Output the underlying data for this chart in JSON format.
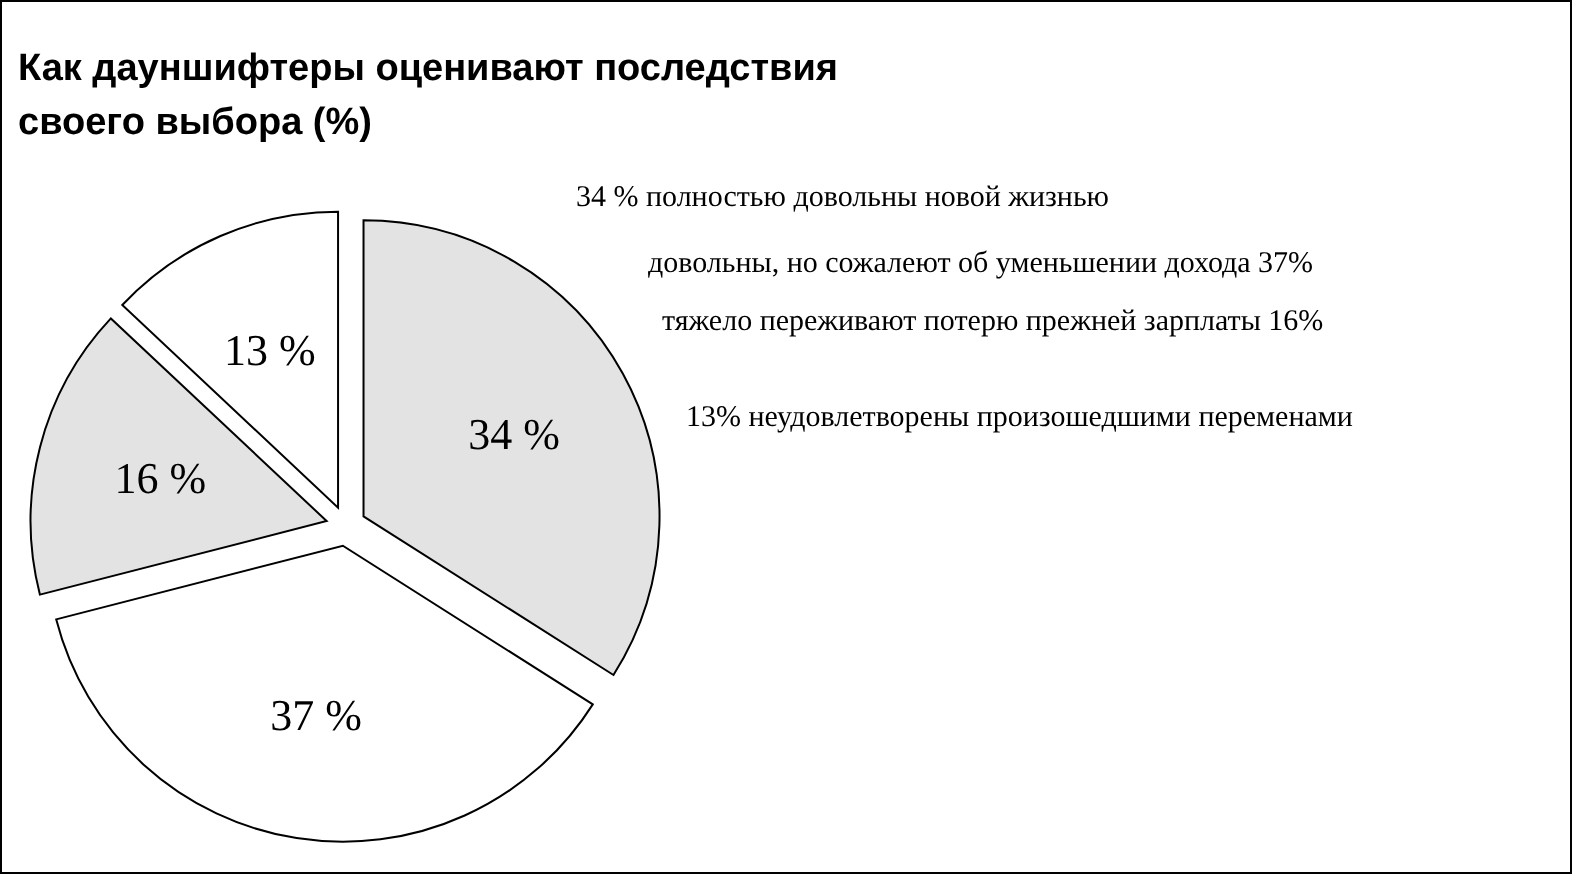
{
  "chart_data": {
    "type": "pie",
    "title": "Как дауншифтеры оценивают последствия своего выбора (%)",
    "categories": [
      null,
      null,
      null,
      null
    ],
    "values": [
      34,
      37,
      16,
      13
    ],
    "colors": [
      "#e3e3e3",
      "#ffffff",
      "#e3e3e3",
      "#ffffff"
    ],
    "value_labels": [
      "34 %",
      "37 %",
      "16 %",
      "13 %"
    ],
    "annotations": [
      "34 % полностью довольны новой жизнью",
      "довольны, но сожалеют об уменьшении дохода 37%",
      "тяжело переживают потерю прежней зарплаты 16%",
      "13% неудовлетворены произошедшими переменами"
    ]
  }
}
